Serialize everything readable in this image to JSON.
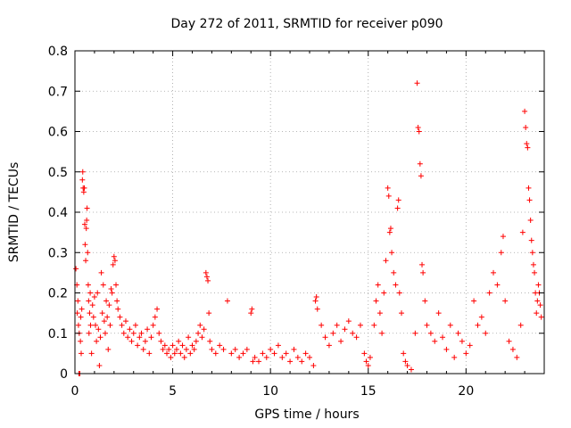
{
  "chart_data": {
    "type": "scatter",
    "title": "Day 272 of 2011, SRMTID for receiver p090",
    "xlabel": "GPS time / hours",
    "ylabel": "SRMTID / TECUs",
    "xlim": [
      0,
      24
    ],
    "ylim": [
      0,
      0.8
    ],
    "xticks": [
      0,
      5,
      10,
      15,
      20
    ],
    "yticks": [
      0,
      0.1,
      0.2,
      0.3,
      0.4,
      0.5,
      0.6,
      0.7,
      0.8
    ],
    "xtick_labels": [
      "0",
      "5",
      "10",
      "15",
      "20"
    ],
    "ytick_labels": [
      "0",
      "0.1",
      "0.2",
      "0.3",
      "0.4",
      "0.5",
      "0.6",
      "0.7",
      "0.8"
    ],
    "grid": true,
    "marker": "+",
    "color": "#ff0000",
    "series": [
      {
        "name": "p090",
        "points": [
          [
            0.05,
            0.26
          ],
          [
            0.1,
            0.22
          ],
          [
            0.12,
            0.15
          ],
          [
            0.15,
            0.18
          ],
          [
            0.18,
            0.12
          ],
          [
            0.2,
            0.0
          ],
          [
            0.22,
            0.1
          ],
          [
            0.25,
            0.0
          ],
          [
            0.28,
            0.08
          ],
          [
            0.3,
            0.14
          ],
          [
            0.32,
            0.05
          ],
          [
            0.35,
            0.16
          ],
          [
            0.38,
            0.48
          ],
          [
            0.4,
            0.5
          ],
          [
            0.42,
            0.46
          ],
          [
            0.45,
            0.45
          ],
          [
            0.48,
            0.46
          ],
          [
            0.5,
            0.37
          ],
          [
            0.52,
            0.32
          ],
          [
            0.55,
            0.28
          ],
          [
            0.58,
            0.36
          ],
          [
            0.6,
            0.38
          ],
          [
            0.62,
            0.41
          ],
          [
            0.65,
            0.3
          ],
          [
            0.68,
            0.22
          ],
          [
            0.7,
            0.18
          ],
          [
            0.72,
            0.1
          ],
          [
            0.75,
            0.15
          ],
          [
            0.78,
            0.2
          ],
          [
            0.8,
            0.12
          ],
          [
            0.85,
            0.05
          ],
          [
            0.9,
            0.17
          ],
          [
            0.95,
            0.14
          ],
          [
            1.0,
            0.19
          ],
          [
            1.05,
            0.12
          ],
          [
            1.1,
            0.08
          ],
          [
            1.15,
            0.2
          ],
          [
            1.2,
            0.11
          ],
          [
            1.25,
            0.02
          ],
          [
            1.3,
            0.09
          ],
          [
            1.35,
            0.25
          ],
          [
            1.4,
            0.15
          ],
          [
            1.45,
            0.22
          ],
          [
            1.5,
            0.13
          ],
          [
            1.55,
            0.1
          ],
          [
            1.6,
            0.18
          ],
          [
            1.65,
            0.14
          ],
          [
            1.7,
            0.06
          ],
          [
            1.75,
            0.17
          ],
          [
            1.8,
            0.12
          ],
          [
            1.85,
            0.21
          ],
          [
            1.9,
            0.2
          ],
          [
            1.95,
            0.27
          ],
          [
            2.0,
            0.29
          ],
          [
            2.05,
            0.28
          ],
          [
            2.1,
            0.22
          ],
          [
            2.15,
            0.18
          ],
          [
            2.2,
            0.16
          ],
          [
            2.3,
            0.14
          ],
          [
            2.4,
            0.12
          ],
          [
            2.5,
            0.1
          ],
          [
            2.6,
            0.13
          ],
          [
            2.7,
            0.09
          ],
          [
            2.8,
            0.11
          ],
          [
            2.9,
            0.08
          ],
          [
            3.0,
            0.1
          ],
          [
            3.1,
            0.12
          ],
          [
            3.2,
            0.07
          ],
          [
            3.3,
            0.09
          ],
          [
            3.4,
            0.1
          ],
          [
            3.5,
            0.06
          ],
          [
            3.6,
            0.08
          ],
          [
            3.7,
            0.11
          ],
          [
            3.8,
            0.05
          ],
          [
            3.9,
            0.09
          ],
          [
            4.0,
            0.12
          ],
          [
            4.1,
            0.14
          ],
          [
            4.2,
            0.16
          ],
          [
            4.3,
            0.1
          ],
          [
            4.4,
            0.08
          ],
          [
            4.5,
            0.06
          ],
          [
            4.6,
            0.07
          ],
          [
            4.7,
            0.05
          ],
          [
            4.8,
            0.06
          ],
          [
            4.9,
            0.04
          ],
          [
            5.0,
            0.07
          ],
          [
            5.1,
            0.05
          ],
          [
            5.2,
            0.06
          ],
          [
            5.3,
            0.08
          ],
          [
            5.4,
            0.05
          ],
          [
            5.5,
            0.07
          ],
          [
            5.6,
            0.04
          ],
          [
            5.7,
            0.06
          ],
          [
            5.8,
            0.09
          ],
          [
            5.9,
            0.05
          ],
          [
            6.0,
            0.07
          ],
          [
            6.1,
            0.06
          ],
          [
            6.2,
            0.08
          ],
          [
            6.3,
            0.1
          ],
          [
            6.4,
            0.12
          ],
          [
            6.5,
            0.09
          ],
          [
            6.6,
            0.11
          ],
          [
            6.7,
            0.25
          ],
          [
            6.75,
            0.24
          ],
          [
            6.8,
            0.23
          ],
          [
            6.85,
            0.15
          ],
          [
            6.9,
            0.08
          ],
          [
            7.0,
            0.06
          ],
          [
            7.2,
            0.05
          ],
          [
            7.4,
            0.07
          ],
          [
            7.6,
            0.06
          ],
          [
            7.8,
            0.18
          ],
          [
            8.0,
            0.05
          ],
          [
            8.2,
            0.06
          ],
          [
            8.4,
            0.04
          ],
          [
            8.6,
            0.05
          ],
          [
            8.8,
            0.06
          ],
          [
            9.0,
            0.15
          ],
          [
            9.05,
            0.16
          ],
          [
            9.1,
            0.03
          ],
          [
            9.2,
            0.04
          ],
          [
            9.4,
            0.03
          ],
          [
            9.6,
            0.05
          ],
          [
            9.8,
            0.04
          ],
          [
            10.0,
            0.06
          ],
          [
            10.2,
            0.05
          ],
          [
            10.4,
            0.07
          ],
          [
            10.6,
            0.04
          ],
          [
            10.8,
            0.05
          ],
          [
            11.0,
            0.03
          ],
          [
            11.2,
            0.06
          ],
          [
            11.4,
            0.04
          ],
          [
            11.6,
            0.03
          ],
          [
            11.8,
            0.05
          ],
          [
            12.0,
            0.04
          ],
          [
            12.2,
            0.02
          ],
          [
            12.3,
            0.18
          ],
          [
            12.35,
            0.19
          ],
          [
            12.4,
            0.16
          ],
          [
            12.6,
            0.12
          ],
          [
            12.8,
            0.09
          ],
          [
            13.0,
            0.07
          ],
          [
            13.2,
            0.1
          ],
          [
            13.4,
            0.12
          ],
          [
            13.6,
            0.08
          ],
          [
            13.8,
            0.11
          ],
          [
            14.0,
            0.13
          ],
          [
            14.2,
            0.1
          ],
          [
            14.4,
            0.09
          ],
          [
            14.6,
            0.12
          ],
          [
            14.8,
            0.05
          ],
          [
            14.9,
            0.03
          ],
          [
            15.0,
            0.02
          ],
          [
            15.1,
            0.04
          ],
          [
            15.3,
            0.12
          ],
          [
            15.4,
            0.18
          ],
          [
            15.5,
            0.22
          ],
          [
            15.6,
            0.15
          ],
          [
            15.7,
            0.1
          ],
          [
            15.8,
            0.2
          ],
          [
            15.9,
            0.28
          ],
          [
            16.0,
            0.46
          ],
          [
            16.05,
            0.44
          ],
          [
            16.1,
            0.35
          ],
          [
            16.15,
            0.36
          ],
          [
            16.2,
            0.3
          ],
          [
            16.3,
            0.25
          ],
          [
            16.4,
            0.22
          ],
          [
            16.5,
            0.41
          ],
          [
            16.55,
            0.43
          ],
          [
            16.6,
            0.2
          ],
          [
            16.7,
            0.15
          ],
          [
            16.8,
            0.05
          ],
          [
            16.9,
            0.03
          ],
          [
            17.0,
            0.02
          ],
          [
            17.2,
            0.01
          ],
          [
            17.4,
            0.1
          ],
          [
            17.5,
            0.72
          ],
          [
            17.55,
            0.61
          ],
          [
            17.6,
            0.6
          ],
          [
            17.65,
            0.52
          ],
          [
            17.7,
            0.49
          ],
          [
            17.75,
            0.27
          ],
          [
            17.8,
            0.25
          ],
          [
            17.9,
            0.18
          ],
          [
            18.0,
            0.12
          ],
          [
            18.2,
            0.1
          ],
          [
            18.4,
            0.08
          ],
          [
            18.6,
            0.15
          ],
          [
            18.8,
            0.09
          ],
          [
            19.0,
            0.06
          ],
          [
            19.2,
            0.12
          ],
          [
            19.4,
            0.04
          ],
          [
            19.6,
            0.1
          ],
          [
            19.8,
            0.08
          ],
          [
            20.0,
            0.05
          ],
          [
            20.2,
            0.07
          ],
          [
            20.4,
            0.18
          ],
          [
            20.6,
            0.12
          ],
          [
            20.8,
            0.14
          ],
          [
            21.0,
            0.1
          ],
          [
            21.2,
            0.2
          ],
          [
            21.4,
            0.25
          ],
          [
            21.6,
            0.22
          ],
          [
            21.8,
            0.3
          ],
          [
            21.9,
            0.34
          ],
          [
            22.0,
            0.18
          ],
          [
            22.2,
            0.08
          ],
          [
            22.4,
            0.06
          ],
          [
            22.6,
            0.04
          ],
          [
            22.8,
            0.12
          ],
          [
            22.9,
            0.35
          ],
          [
            23.0,
            0.65
          ],
          [
            23.05,
            0.61
          ],
          [
            23.1,
            0.57
          ],
          [
            23.15,
            0.56
          ],
          [
            23.2,
            0.46
          ],
          [
            23.25,
            0.43
          ],
          [
            23.3,
            0.38
          ],
          [
            23.35,
            0.33
          ],
          [
            23.4,
            0.3
          ],
          [
            23.45,
            0.27
          ],
          [
            23.5,
            0.25
          ],
          [
            23.55,
            0.2
          ],
          [
            23.6,
            0.15
          ],
          [
            23.65,
            0.18
          ],
          [
            23.7,
            0.22
          ],
          [
            23.75,
            0.2
          ],
          [
            23.8,
            0.17
          ],
          [
            23.85,
            0.14
          ]
        ]
      }
    ]
  }
}
